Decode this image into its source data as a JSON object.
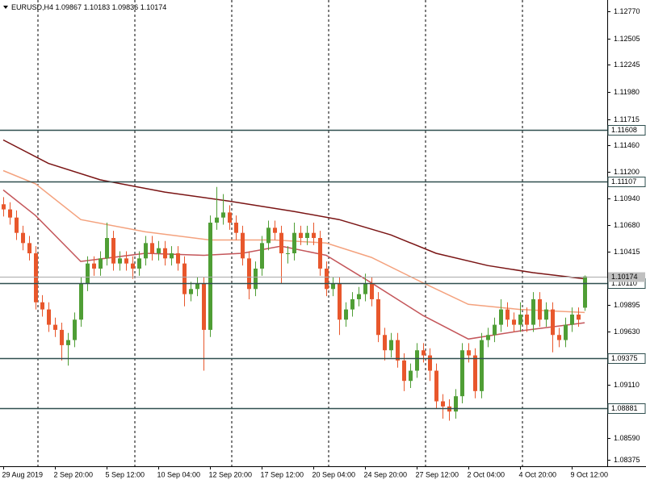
{
  "chart_data": {
    "type": "candlestick",
    "symbol": "EURUSD,H4",
    "open": [
      1.1088,
      1.1083,
      1.1075,
      1.106,
      1.105,
      1.104,
      1.0992,
      1.0985,
      1.097,
      1.0965,
      1.095,
      1.0955,
      1.0975,
      1.101,
      1.103,
      1.1025,
      1.1035,
      1.1055,
      1.103,
      1.1035,
      1.103,
      1.1025,
      1.1035,
      1.105,
      1.104,
      1.1045,
      1.1035,
      1.104,
      1.103,
      1.1,
      1.1005,
      1.101,
      1.0965,
      1.107,
      1.1075,
      1.108,
      1.107,
      1.106,
      1.1035,
      1.1005,
      1.1025,
      1.105,
      1.1065,
      1.106,
      1.104,
      1.104,
      1.106,
      1.1055,
      1.106,
      1.1055,
      1.1025,
      1.1005,
      1.101,
      1.0975,
      1.0985,
      1.0995,
      1.1,
      1.101,
      1.0995,
      1.096,
      1.0945,
      1.0955,
      1.0935,
      1.0915,
      1.0925,
      1.0945,
      1.094,
      1.0925,
      1.0895,
      1.089,
      1.0885,
      1.09,
      1.0945,
      1.094,
      1.0905,
      1.0955,
      1.096,
      1.097,
      1.0985,
      1.0975,
      1.097,
      1.098,
      1.097,
      1.0995,
      1.0975,
      1.0985,
      1.096,
      1.0955,
      1.097,
      1.098,
      1.09867
    ],
    "high": [
      1.1095,
      1.109,
      1.1082,
      1.1067,
      1.1057,
      1.1047,
      1.0999,
      1.0992,
      1.0977,
      1.0972,
      1.0962,
      1.0982,
      1.1017,
      1.1037,
      1.1037,
      1.1042,
      1.107,
      1.1062,
      1.1042,
      1.1042,
      1.1037,
      1.1042,
      1.1057,
      1.1057,
      1.1052,
      1.1052,
      1.1047,
      1.1047,
      1.1037,
      1.1012,
      1.1017,
      1.1017,
      1.1077,
      1.1105,
      1.1098,
      1.1087,
      1.1077,
      1.1067,
      1.1042,
      1.1032,
      1.1057,
      1.1072,
      1.1072,
      1.1067,
      1.1047,
      1.107,
      1.1067,
      1.1067,
      1.107,
      1.1062,
      1.1032,
      1.1017,
      1.1017,
      1.0992,
      1.1002,
      1.1007,
      1.102,
      1.1017,
      1.1002,
      1.0967,
      1.0962,
      1.0962,
      1.0942,
      1.0932,
      1.0952,
      1.0952,
      1.0947,
      1.0932,
      1.0902,
      1.0897,
      1.0907,
      1.0952,
      1.0952,
      1.0947,
      1.0962,
      1.0967,
      1.0977,
      1.0995,
      1.0992,
      1.0982,
      1.0992,
      1.0987,
      1.1002,
      1.1002,
      1.0992,
      1.0992,
      1.0967,
      1.0977,
      1.0987,
      1.0987,
      1.10183
    ],
    "low": [
      1.1076,
      1.1068,
      1.1053,
      1.1043,
      1.1033,
      1.0985,
      1.0978,
      1.0963,
      1.0958,
      1.0935,
      1.093,
      1.0948,
      1.0968,
      1.1003,
      1.1018,
      1.1018,
      1.1028,
      1.1023,
      1.1023,
      1.1023,
      1.1015,
      1.1018,
      1.1028,
      1.1033,
      1.1033,
      1.1028,
      1.1028,
      1.1023,
      1.0988,
      1.0993,
      1.0998,
      1.0925,
      1.0958,
      1.1063,
      1.1068,
      1.1063,
      1.1053,
      1.1028,
      1.0995,
      1.0998,
      1.1018,
      1.1043,
      1.1053,
      1.101,
      1.103,
      1.1033,
      1.1048,
      1.1048,
      1.1048,
      1.1018,
      1.0998,
      1.0998,
      1.096,
      1.0968,
      1.0978,
      1.0988,
      1.0993,
      1.0988,
      1.0953,
      1.0935,
      1.0938,
      1.0928,
      1.0905,
      1.0908,
      1.0918,
      1.0933,
      1.0915,
      1.0888,
      1.0878,
      1.0876,
      1.0878,
      1.0893,
      1.0933,
      1.0898,
      1.0898,
      1.0948,
      1.0953,
      1.0963,
      1.0968,
      1.0963,
      1.0963,
      1.0963,
      1.0963,
      1.0968,
      1.0968,
      1.0943,
      1.0948,
      1.0948,
      1.0963,
      1.0968,
      1.09836
    ],
    "close": [
      1.1083,
      1.1075,
      1.106,
      1.105,
      1.104,
      1.0992,
      1.0985,
      1.097,
      1.0965,
      1.095,
      1.0955,
      1.0975,
      1.101,
      1.103,
      1.1025,
      1.1035,
      1.1055,
      1.103,
      1.1035,
      1.103,
      1.1025,
      1.1035,
      1.105,
      1.104,
      1.1045,
      1.1035,
      1.104,
      1.103,
      1.1,
      1.1005,
      1.101,
      1.0965,
      1.107,
      1.1075,
      1.108,
      1.107,
      1.106,
      1.1035,
      1.1005,
      1.1025,
      1.105,
      1.1065,
      1.106,
      1.104,
      1.104,
      1.106,
      1.1055,
      1.106,
      1.1055,
      1.1025,
      1.1005,
      1.101,
      1.0975,
      1.0985,
      1.0995,
      1.1,
      1.101,
      1.0995,
      1.096,
      1.0945,
      1.0955,
      1.0935,
      1.0915,
      1.0925,
      1.0945,
      1.094,
      1.0925,
      1.0895,
      1.089,
      1.0885,
      1.09,
      1.0945,
      1.094,
      1.0905,
      1.0955,
      1.096,
      1.097,
      1.0985,
      1.0975,
      1.097,
      1.098,
      1.097,
      1.0995,
      1.0975,
      1.0985,
      1.096,
      1.0955,
      1.097,
      1.098,
      1.0975,
      1.10174
    ],
    "bull_color": "#4f9e35",
    "bear_color": "#e8572c",
    "series": [
      {
        "color": "#7a1414",
        "x": [
          0,
          7,
          15,
          25,
          35,
          45,
          52,
          60,
          67,
          75,
          82,
          90
        ],
        "values": [
          1.1151,
          1.1128,
          1.1112,
          1.11,
          1.1091,
          1.1081,
          1.1073,
          1.1058,
          1.104,
          1.1028,
          1.1021,
          1.1015
        ]
      },
      {
        "color": "#f4a27e",
        "x": [
          0,
          5,
          12,
          22,
          32,
          42,
          50,
          57,
          65,
          72,
          80,
          90
        ],
        "values": [
          1.1121,
          1.1108,
          1.1073,
          1.1061,
          1.1053,
          1.1053,
          1.105,
          1.1036,
          1.1011,
          1.099,
          1.0985,
          1.0982
        ]
      },
      {
        "color": "#c4565a",
        "x": [
          0,
          5,
          12,
          22,
          31,
          37,
          43,
          50,
          57,
          65,
          72,
          80,
          90
        ],
        "values": [
          1.1102,
          1.1077,
          1.1032,
          1.104,
          1.1038,
          1.104,
          1.1047,
          1.1038,
          1.1011,
          1.0979,
          1.0956,
          1.0964,
          1.0972
        ]
      }
    ],
    "levels": [
      1.11608,
      1.11107,
      {
        "value": 1.1011,
        "label": "1.10110"
      },
      1.09375,
      1.08881
    ],
    "xlim": [
      -0.5,
      93.5
    ],
    "ylim": [
      1.08314,
      1.12881
    ],
    "yticks": [
      {
        "value": 1.1277,
        "label": "1.12770"
      },
      1.12505,
      1.12245,
      {
        "value": 1.1198,
        "label": "1.11980"
      },
      1.11715,
      {
        "value": 1.1146,
        "label": "1.11460"
      },
      {
        "value": 1.112,
        "label": "1.11200"
      },
      {
        "value": 1.1094,
        "label": "1.10940"
      },
      {
        "value": 1.1068,
        "label": "1.10680"
      },
      1.10415,
      1.09895,
      {
        "value": 1.0963,
        "label": "1.09630"
      },
      {
        "value": 1.0911,
        "label": "1.09110"
      },
      {
        "value": 1.0859,
        "label": "1.08590"
      },
      1.08375
    ],
    "xticks": [
      {
        "value": 0,
        "label": "29 Aug 2019"
      },
      {
        "value": 8,
        "label": "2 Sep 20:00"
      },
      {
        "value": 16,
        "label": "5 Sep 12:00"
      },
      {
        "value": 24,
        "label": "10 Sep 04:00"
      },
      {
        "value": 32,
        "label": "12 Sep 20:00"
      },
      {
        "value": 40,
        "label": "17 Sep 12:00"
      },
      {
        "value": 48,
        "label": "20 Sep 04:00"
      },
      {
        "value": 56,
        "label": "24 Sep 20:00"
      },
      {
        "value": 64,
        "label": "27 Sep 12:00"
      },
      {
        "value": 72,
        "label": "2 Oct 04:00"
      },
      {
        "value": 80,
        "label": "4 Oct 20:00"
      },
      {
        "value": 88,
        "label": "9 Oct 12:00"
      }
    ]
  }
}
